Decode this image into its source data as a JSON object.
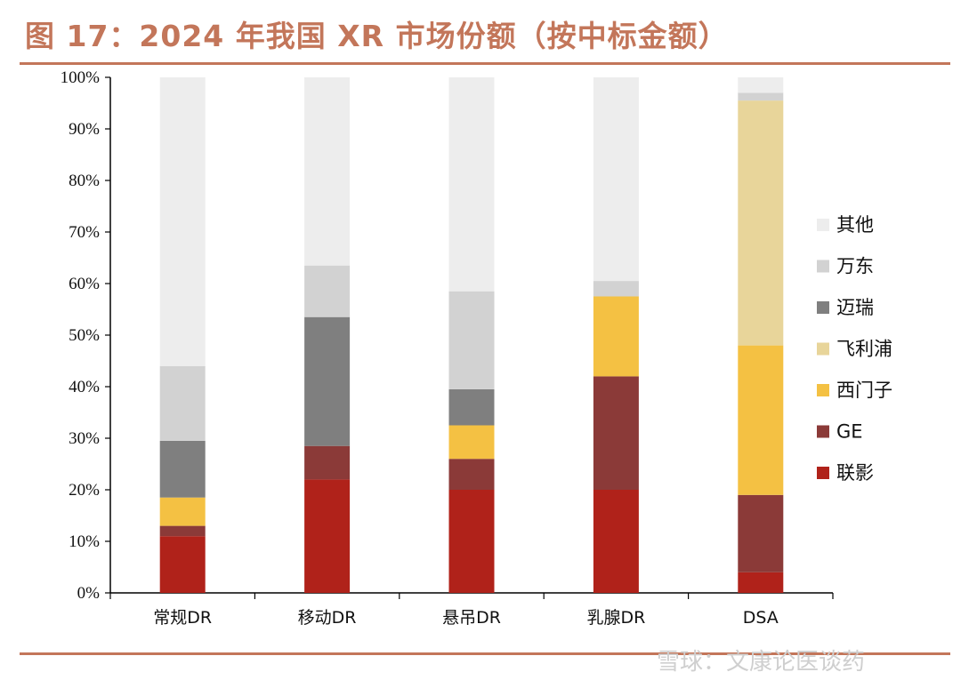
{
  "title": "图 17：2024 年我国 XR 市场份额（按中标金额）",
  "watermark": "雪球：文康论医谈药",
  "chart_data": {
    "type": "bar",
    "stacked": true,
    "categories": [
      "常规DR",
      "移动DR",
      "悬吊DR",
      "乳腺DR",
      "DSA"
    ],
    "ylim": [
      0,
      100
    ],
    "yticks": [
      "0%",
      "10%",
      "20%",
      "30%",
      "40%",
      "50%",
      "60%",
      "70%",
      "80%",
      "90%",
      "100%"
    ],
    "legend_position": "right",
    "series": [
      {
        "name": "联影",
        "color": "#b0221a",
        "values": [
          11,
          22,
          20,
          20,
          4
        ]
      },
      {
        "name": "GE",
        "color": "#8b3a38",
        "values": [
          2,
          6.5,
          6,
          22,
          15
        ]
      },
      {
        "name": "西门子",
        "color": "#f4c143",
        "values": [
          5.5,
          0,
          6.5,
          15.5,
          29
        ]
      },
      {
        "name": "飞利浦",
        "color": "#e8d59a",
        "values": [
          0,
          0,
          0,
          0,
          47.5
        ]
      },
      {
        "name": "迈瑞",
        "color": "#7f7f7f",
        "values": [
          11,
          25,
          7,
          0,
          0
        ]
      },
      {
        "name": "万东",
        "color": "#d2d2d2",
        "values": [
          14.5,
          10,
          19,
          3,
          1.5
        ]
      },
      {
        "name": "其他",
        "color": "#ededed",
        "values": [
          56,
          36.5,
          41.5,
          39.5,
          3
        ]
      }
    ]
  }
}
